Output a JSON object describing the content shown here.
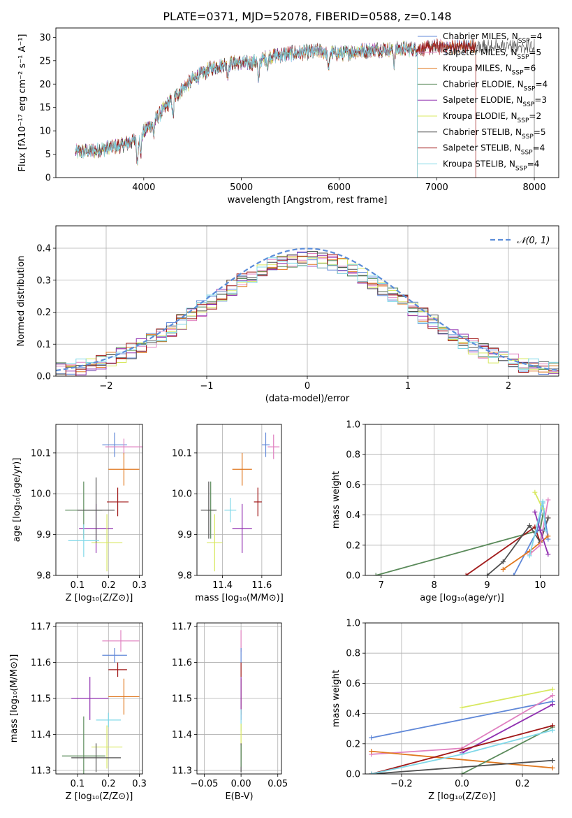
{
  "figure_title": "PLATE=0371, MJD=52078, FIBERID=0588, z=0.148",
  "colors": {
    "Chabrier MILES": "#6088d8",
    "Salpeter MILES": "#e080c0",
    "Kroupa MILES": "#e07820",
    "Chabrier ELODIE": "#5a8a5a",
    "Salpeter ELODIE": "#9030b0",
    "Kroupa ELODIE": "#d8e860",
    "Chabrier STELIB": "#505050",
    "Salpeter STELIB": "#a01818",
    "Kroupa STELIB": "#80d8e8"
  },
  "chart_data": [
    {
      "id": "spectrum",
      "type": "line",
      "title": "PLATE=0371, MJD=52078, FIBERID=0588, z=0.148",
      "xlabel": "wavelength [Angstrom, rest frame]",
      "ylabel": "Flux [fλ10⁻¹⁷ erg cm⁻² s⁻¹ A⁻¹]",
      "xlim": [
        3100,
        8250
      ],
      "ylim": [
        0,
        32
      ],
      "xticks": [
        4000,
        5000,
        6000,
        7000,
        8000
      ],
      "yticks": [
        0,
        5,
        10,
        15,
        20,
        25,
        30
      ],
      "grid": false,
      "legend": "top-right",
      "continuum": {
        "x": [
          3300,
          3500,
          3800,
          3950,
          4100,
          4300,
          4500,
          4700,
          4900,
          5100,
          5300,
          5500,
          5800,
          6000,
          6200,
          6500,
          6800,
          7000,
          7200,
          7400
        ],
        "y": [
          5.5,
          5.8,
          7,
          8.5,
          12,
          17,
          21,
          23.5,
          24.5,
          24.5,
          26,
          26.5,
          27,
          26.5,
          27,
          27.5,
          27.5,
          28,
          28,
          28
        ]
      },
      "dips": [
        {
          "x": 3934,
          "depth": 5
        },
        {
          "x": 3969,
          "depth": 4
        },
        {
          "x": 4102,
          "depth": 3
        },
        {
          "x": 4300,
          "depth": 4
        },
        {
          "x": 4861,
          "depth": 2.5
        },
        {
          "x": 5175,
          "depth": 5
        },
        {
          "x": 5270,
          "depth": 2
        },
        {
          "x": 5893,
          "depth": 4
        },
        {
          "x": 6563,
          "depth": 3
        }
      ],
      "series": [
        {
          "name": "Chabrier MILES, N_SSP=4",
          "color": "#6088d8",
          "x_end": 7400
        },
        {
          "name": "Salpeter MILES, N_SSP=5",
          "color": "#e080c0",
          "x_end": 7400
        },
        {
          "name": "Kroupa MILES, N_SSP=6",
          "color": "#e07820",
          "x_end": 7400
        },
        {
          "name": "Chabrier ELODIE, N_SSP=4",
          "color": "#5a8a5a",
          "x_end": 6800
        },
        {
          "name": "Salpeter ELODIE, N_SSP=3",
          "color": "#9030b0",
          "x_end": 6800
        },
        {
          "name": "Kroupa ELODIE, N_SSP=2",
          "color": "#d8e860",
          "x_end": 6800
        },
        {
          "name": "Chabrier STELIB, N_SSP=5",
          "color": "#505050",
          "x_end": 8000
        },
        {
          "name": "Salpeter STELIB, N_SSP=4",
          "color": "#a01818",
          "x_end": 7400
        },
        {
          "name": "Kroupa STELIB, N_SSP=4",
          "color": "#80d8e8",
          "x_end": 6800
        }
      ]
    },
    {
      "id": "residuals",
      "type": "histogram",
      "xlabel": "(data-model)/error",
      "ylabel": "Normed distribution",
      "xlim": [
        -2.5,
        2.5
      ],
      "ylim": [
        0,
        0.47
      ],
      "xticks": [
        -2,
        -1,
        0,
        1,
        2
      ],
      "xticklabels": [
        "−2",
        "−1",
        "0",
        "1",
        "2"
      ],
      "yticks": [
        0,
        0.1,
        0.2,
        0.3,
        0.4
      ],
      "yticklabels": [
        "0.0",
        "0.1",
        "0.2",
        "0.3",
        "0.4"
      ],
      "grid": true,
      "legend": "top-right",
      "legend_label": "𝒩(0, 1)",
      "bin_width": 0.1,
      "reference_curve": "normal(0,1) dashed #5b8dd9"
    },
    {
      "id": "age_vs_Z",
      "type": "scatter",
      "xlabel": "Z [log₁₀(Z/Z⊙)]",
      "ylabel": "age  [log₁₀(age/yr)]",
      "xlim": [
        0.03,
        0.31
      ],
      "ylim": [
        9.8,
        10.17
      ],
      "xticks": [
        0.1,
        0.2,
        0.3
      ],
      "xticklabels": [
        "0.1",
        "0.2",
        "0.3"
      ],
      "yticks": [
        9.8,
        9.9,
        10.0,
        10.1
      ],
      "yticklabels": [
        "9.8",
        "9.9",
        "10.0",
        "10.1"
      ],
      "grid": true,
      "points": [
        {
          "series": "Chabrier MILES",
          "x": 0.22,
          "y": 10.12,
          "xerr": 0.04,
          "yerr": 0.03
        },
        {
          "series": "Salpeter MILES",
          "x": 0.25,
          "y": 10.115,
          "xerr": 0.06,
          "yerr": 0.02
        },
        {
          "series": "Kroupa MILES",
          "x": 0.25,
          "y": 10.06,
          "xerr": 0.05,
          "yerr": 0.04
        },
        {
          "series": "Chabrier ELODIE",
          "x": 0.12,
          "y": 9.96,
          "xerr": 0.06,
          "yerr": 0.07
        },
        {
          "series": "Salpeter ELODIE",
          "x": 0.16,
          "y": 9.915,
          "xerr": 0.055,
          "yerr": 0.06
        },
        {
          "series": "Kroupa ELODIE",
          "x": 0.195,
          "y": 9.88,
          "xerr": 0.05,
          "yerr": 0.07
        },
        {
          "series": "Chabrier STELIB",
          "x": 0.16,
          "y": 9.96,
          "xerr": 0.06,
          "yerr": 0.08
        },
        {
          "series": "Salpeter STELIB",
          "x": 0.23,
          "y": 9.98,
          "xerr": 0.035,
          "yerr": 0.035
        },
        {
          "series": "Kroupa STELIB",
          "x": 0.12,
          "y": 9.885,
          "xerr": 0.05,
          "yerr": 0.04
        }
      ]
    },
    {
      "id": "age_vs_mass",
      "type": "scatter",
      "xlabel": "mass [log₁₀(M/M⊙)]",
      "ylabel": "",
      "xlim": [
        11.27,
        11.7
      ],
      "ylim": [
        9.8,
        10.17
      ],
      "xticks": [
        11.4,
        11.6
      ],
      "xticklabels": [
        "11.4",
        "11.6"
      ],
      "yticks": [
        9.8,
        9.9,
        10.0,
        10.1
      ],
      "yticklabels": [
        "9.8",
        "9.9",
        "10.0",
        "10.1"
      ],
      "grid": true,
      "points": [
        {
          "series": "Chabrier MILES",
          "x": 11.62,
          "y": 10.12,
          "xerr": 0.02,
          "yerr": 0.03
        },
        {
          "series": "Salpeter MILES",
          "x": 11.66,
          "y": 10.115,
          "xerr": 0.03,
          "yerr": 0.03
        },
        {
          "series": "Kroupa MILES",
          "x": 11.5,
          "y": 10.06,
          "xerr": 0.05,
          "yerr": 0.04
        },
        {
          "series": "Chabrier ELODIE",
          "x": 11.34,
          "y": 9.96,
          "xerr": 0.02,
          "yerr": 0.07
        },
        {
          "series": "Salpeter ELODIE",
          "x": 11.5,
          "y": 9.915,
          "xerr": 0.05,
          "yerr": 0.06
        },
        {
          "series": "Kroupa ELODIE",
          "x": 11.36,
          "y": 9.88,
          "xerr": 0.04,
          "yerr": 0.07
        },
        {
          "series": "Chabrier STELIB",
          "x": 11.33,
          "y": 9.96,
          "xerr": 0.04,
          "yerr": 0.07
        },
        {
          "series": "Salpeter STELIB",
          "x": 11.58,
          "y": 9.98,
          "xerr": 0.02,
          "yerr": 0.035
        },
        {
          "series": "Kroupa STELIB",
          "x": 11.44,
          "y": 9.96,
          "xerr": 0.03,
          "yerr": 0.03
        }
      ]
    },
    {
      "id": "weight_vs_age",
      "type": "line",
      "xlabel": "age  [log₁₀(age/yr)]",
      "ylabel": "mass weight",
      "xlim": [
        6.7,
        10.35
      ],
      "ylim": [
        0,
        1.0
      ],
      "xticks": [
        7,
        8,
        9,
        10
      ],
      "xticklabels": [
        "7",
        "8",
        "9",
        "10"
      ],
      "yticks": [
        0,
        0.2,
        0.4,
        0.6,
        0.8,
        1.0
      ],
      "yticklabels": [
        "0.0",
        "0.2",
        "0.4",
        "0.6",
        "0.8",
        "1.0"
      ],
      "grid": true,
      "series": [
        {
          "name": "Chabrier ELODIE",
          "x": [
            6.9,
            10.0,
            10.05
          ],
          "y": [
            0.0,
            0.3,
            0.4
          ]
        },
        {
          "name": "Salpeter STELIB",
          "x": [
            8.6,
            9.9,
            10.0,
            10.15
          ],
          "y": [
            0.0,
            0.32,
            0.22,
            0.38
          ]
        },
        {
          "name": "Chabrier STELIB",
          "x": [
            9.0,
            9.3,
            9.8,
            10.0,
            10.15
          ],
          "y": [
            0.0,
            0.09,
            0.33,
            0.22,
            0.38
          ]
        },
        {
          "name": "Chabrier MILES",
          "x": [
            9.5,
            9.95,
            10.05,
            10.15
          ],
          "y": [
            0.0,
            0.3,
            0.48,
            0.24
          ]
        },
        {
          "name": "Kroupa MILES",
          "x": [
            9.3,
            9.8,
            10.15
          ],
          "y": [
            0.04,
            0.16,
            0.26
          ]
        },
        {
          "name": "Salpeter MILES",
          "x": [
            9.8,
            10.0,
            10.15
          ],
          "y": [
            0.14,
            0.2,
            0.5
          ]
        },
        {
          "name": "Salpeter ELODIE",
          "x": [
            9.9,
            10.0,
            10.15
          ],
          "y": [
            0.42,
            0.3,
            0.14
          ]
        },
        {
          "name": "Kroupa ELODIE",
          "x": [
            9.9,
            10.05
          ],
          "y": [
            0.55,
            0.44
          ]
        },
        {
          "name": "Kroupa STELIB",
          "x": [
            9.8,
            10.05,
            10.1
          ],
          "y": [
            0.13,
            0.49,
            0.3
          ]
        }
      ]
    },
    {
      "id": "mass_vs_Z",
      "type": "scatter",
      "xlabel": "Z [log₁₀(Z/Z⊙)]",
      "ylabel": "mass [log₁₀(M/M⊙)]",
      "xlim": [
        0.03,
        0.31
      ],
      "ylim": [
        11.29,
        11.71
      ],
      "xticks": [
        0.1,
        0.2,
        0.3
      ],
      "xticklabels": [
        "0.1",
        "0.2",
        "0.3"
      ],
      "yticks": [
        11.3,
        11.4,
        11.5,
        11.6,
        11.7
      ],
      "yticklabels": [
        "11.3",
        "11.4",
        "11.5",
        "11.6",
        "11.7"
      ],
      "grid": true,
      "points": [
        {
          "series": "Chabrier MILES",
          "x": 0.22,
          "y": 11.62,
          "xerr": 0.04,
          "yerr": 0.02
        },
        {
          "series": "Salpeter MILES",
          "x": 0.24,
          "y": 11.66,
          "xerr": 0.06,
          "yerr": 0.03
        },
        {
          "series": "Kroupa MILES",
          "x": 0.25,
          "y": 11.505,
          "xerr": 0.05,
          "yerr": 0.05
        },
        {
          "series": "Chabrier ELODIE",
          "x": 0.12,
          "y": 11.34,
          "xerr": 0.07,
          "yerr": 0.11
        },
        {
          "series": "Salpeter ELODIE",
          "x": 0.14,
          "y": 11.5,
          "xerr": 0.06,
          "yerr": 0.06
        },
        {
          "series": "Kroupa ELODIE",
          "x": 0.195,
          "y": 11.365,
          "xerr": 0.05,
          "yerr": 0.06
        },
        {
          "series": "Chabrier STELIB",
          "x": 0.16,
          "y": 11.335,
          "xerr": 0.08,
          "yerr": 0.04
        },
        {
          "series": "Salpeter STELIB",
          "x": 0.23,
          "y": 11.58,
          "xerr": 0.03,
          "yerr": 0.02
        },
        {
          "series": "Kroupa STELIB",
          "x": 0.2,
          "y": 11.44,
          "xerr": 0.04,
          "yerr": 0.02
        }
      ]
    },
    {
      "id": "mass_vs_EBV",
      "type": "scatter",
      "xlabel": "E(B-V)",
      "ylabel": "",
      "xlim": [
        -0.06,
        0.055
      ],
      "ylim": [
        11.29,
        11.71
      ],
      "xticks": [
        -0.05,
        0.0,
        0.05
      ],
      "xticklabels": [
        "−0.05",
        "0.00",
        "0.05"
      ],
      "yticks": [
        11.3,
        11.4,
        11.5,
        11.6,
        11.7
      ],
      "yticklabels": [
        "11.3",
        "11.4",
        "11.5",
        "11.6",
        "11.7"
      ],
      "grid": true,
      "points": [
        {
          "series": "Salpeter MILES",
          "x": 0.0,
          "y": 11.66,
          "xerr": 0.0,
          "yerr": 0.03
        },
        {
          "series": "Chabrier MILES",
          "x": 0.0,
          "y": 11.62,
          "xerr": 0.0,
          "yerr": 0.02
        },
        {
          "series": "Salpeter STELIB",
          "x": 0.0,
          "y": 11.58,
          "xerr": 0.0,
          "yerr": 0.02
        },
        {
          "series": "Kroupa MILES",
          "x": 0.0,
          "y": 11.505,
          "xerr": 0.0,
          "yerr": 0.05
        },
        {
          "series": "Salpeter ELODIE",
          "x": 0.0,
          "y": 11.5,
          "xerr": 0.0,
          "yerr": 0.06
        },
        {
          "series": "Kroupa STELIB",
          "x": 0.0,
          "y": 11.44,
          "xerr": 0.0,
          "yerr": 0.03
        },
        {
          "series": "Kroupa ELODIE",
          "x": 0.0,
          "y": 11.38,
          "xerr": 0.0,
          "yerr": 0.05
        },
        {
          "series": "Chabrier STELIB",
          "x": 0.0,
          "y": 11.335,
          "xerr": 0.0,
          "yerr": 0.04
        },
        {
          "series": "Chabrier ELODIE",
          "x": 0.0,
          "y": 11.34,
          "xerr": 0.0,
          "yerr": 0.03
        }
      ]
    },
    {
      "id": "weight_vs_Z",
      "type": "line",
      "xlabel": "Z [log₁₀(Z/Z⊙)]",
      "ylabel": "mass weight",
      "xlim": [
        -0.32,
        0.32
      ],
      "ylim": [
        0,
        1.0
      ],
      "xticks": [
        -0.2,
        0.0,
        0.2
      ],
      "xticklabels": [
        "−0.2",
        "0.0",
        "0.2"
      ],
      "yticks": [
        0,
        0.2,
        0.4,
        0.6,
        0.8,
        1.0
      ],
      "yticklabels": [
        "0.0",
        "0.2",
        "0.4",
        "0.6",
        "0.8",
        "1.0"
      ],
      "grid": true,
      "series": [
        {
          "name": "Chabrier MILES",
          "x": [
            -0.3,
            0.3
          ],
          "y": [
            0.24,
            0.48
          ]
        },
        {
          "name": "Salpeter MILES",
          "x": [
            -0.3,
            0.0,
            0.3
          ],
          "y": [
            0.13,
            0.17,
            0.52
          ]
        },
        {
          "name": "Kroupa MILES",
          "x": [
            -0.3,
            0.3
          ],
          "y": [
            0.15,
            0.04
          ]
        },
        {
          "name": "Chabrier ELODIE",
          "x": [
            0.0,
            0.3
          ],
          "y": [
            0.0,
            0.31
          ]
        },
        {
          "name": "Salpeter ELODIE",
          "x": [
            0.0,
            0.3
          ],
          "y": [
            0.14,
            0.46
          ]
        },
        {
          "name": "Kroupa ELODIE",
          "x": [
            0.0,
            0.3
          ],
          "y": [
            0.44,
            0.56
          ]
        },
        {
          "name": "Chabrier STELIB",
          "x": [
            -0.3,
            0.3
          ],
          "y": [
            0.0,
            0.09
          ]
        },
        {
          "name": "Salpeter STELIB",
          "x": [
            -0.3,
            0.0,
            0.3
          ],
          "y": [
            0.0,
            0.16,
            0.32
          ]
        },
        {
          "name": "Kroupa STELIB",
          "x": [
            -0.3,
            0.0,
            0.3
          ],
          "y": [
            0.0,
            0.13,
            0.29
          ]
        }
      ]
    }
  ]
}
